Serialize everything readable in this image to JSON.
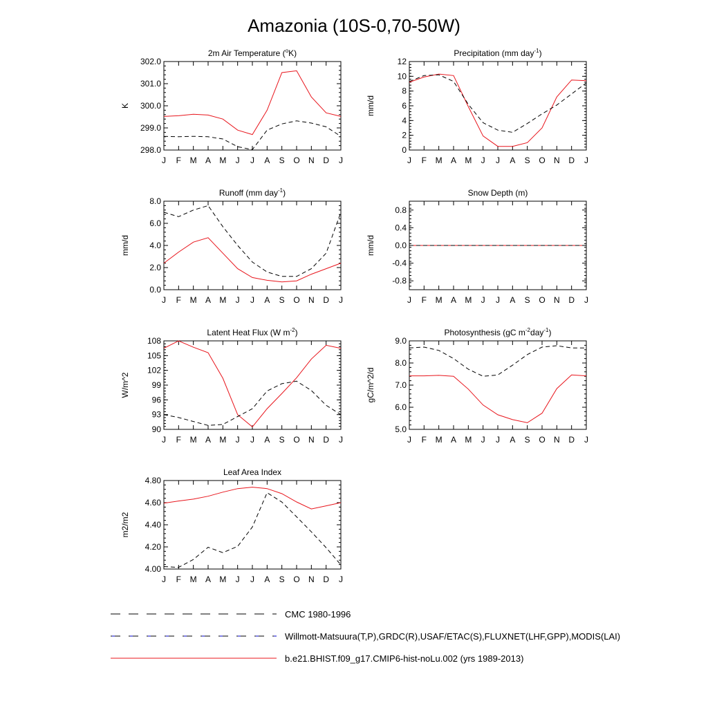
{
  "title": "Amazonia (10S-0,70-50W)",
  "colors": {
    "model": "#e8141b",
    "obs": "#000000",
    "obs_alt": "#0000cc"
  },
  "months": [
    "J",
    "F",
    "M",
    "A",
    "M",
    "J",
    "J",
    "A",
    "S",
    "O",
    "N",
    "D",
    "J"
  ],
  "legend": [
    {
      "label": "CMC 1980-1996",
      "style": "dash",
      "color": "#000000"
    },
    {
      "label": "Willmott-Matsuura(T,P),GRDC(R),USAF/ETAC(S),FLUXNET(LHF,GPP),MODIS(LAI)",
      "style": "dash",
      "color": "#000000"
    },
    {
      "label": "b.e21.BHIST.f09_g17.CMIP6-hist-noLu.002 (yrs 1989-2013)",
      "style": "solid",
      "color": "#e8141b"
    }
  ],
  "chart_data": [
    {
      "type": "line",
      "title": "2m Air Temperature (",
      "title_sup": "o",
      "title_tail": "K)",
      "ylabel": "K",
      "ylim": [
        298.0,
        302.0
      ],
      "yticks": [
        298.0,
        299.0,
        300.0,
        301.0,
        302.0
      ],
      "ytick_labels": [
        "298.0",
        "299.0",
        "300.0",
        "301.0",
        "302.0"
      ],
      "series": [
        {
          "style": "solid",
          "values": [
            299.52,
            299.55,
            299.62,
            299.58,
            299.4,
            298.9,
            298.7,
            299.8,
            301.5,
            301.58,
            300.4,
            299.68,
            299.52
          ]
        },
        {
          "style": "dash",
          "values": [
            298.62,
            298.6,
            298.62,
            298.6,
            298.5,
            298.15,
            298.02,
            298.9,
            299.18,
            299.32,
            299.22,
            299.05,
            298.62
          ]
        }
      ]
    },
    {
      "type": "line",
      "title": "Precipitation (mm day",
      "title_sup": "-1",
      "title_tail": ")",
      "ylabel": "mm/d",
      "ylim": [
        0,
        12
      ],
      "yticks": [
        0,
        2,
        4,
        6,
        8,
        10,
        12
      ],
      "ytick_labels": [
        "0",
        "2",
        "4",
        "6",
        "8",
        "10",
        "12"
      ],
      "series": [
        {
          "style": "solid",
          "values": [
            9.2,
            9.9,
            10.3,
            10.1,
            5.9,
            1.9,
            0.5,
            0.5,
            1.0,
            3.0,
            7.2,
            9.5,
            9.4
          ]
        },
        {
          "style": "dash",
          "values": [
            9.3,
            10.1,
            10.2,
            9.3,
            6.2,
            3.7,
            2.7,
            2.4,
            3.6,
            4.9,
            6.1,
            7.6,
            9.1
          ]
        }
      ]
    },
    {
      "type": "line",
      "title": "Runoff (mm day",
      "title_sup": "-1",
      "title_tail": ")",
      "ylabel": "mm/d",
      "ylim": [
        0.0,
        8.0
      ],
      "yticks": [
        0.0,
        2.0,
        4.0,
        6.0,
        8.0
      ],
      "ytick_labels": [
        "0.0",
        "2.0",
        "4.0",
        "6.0",
        "8.0"
      ],
      "series": [
        {
          "style": "solid",
          "values": [
            2.4,
            3.4,
            4.3,
            4.7,
            3.3,
            1.9,
            1.1,
            0.85,
            0.7,
            0.8,
            1.4,
            1.9,
            2.4
          ]
        },
        {
          "style": "dash",
          "values": [
            7.0,
            6.6,
            7.2,
            7.6,
            5.7,
            4.0,
            2.5,
            1.6,
            1.2,
            1.2,
            1.9,
            3.3,
            7.0
          ]
        }
      ]
    },
    {
      "type": "line",
      "title": "Snow Depth (m)",
      "title_sup": "",
      "title_tail": "",
      "ylabel": "mm/d",
      "ylim": [
        -1.0,
        1.0
      ],
      "yticks": [
        -0.8,
        -0.4,
        0.0,
        0.4,
        0.8
      ],
      "ytick_labels": [
        "-0.8",
        "-0.4",
        "0.0",
        "0.4",
        "0.8"
      ],
      "series": [
        {
          "style": "solid",
          "values": [
            0,
            0,
            0,
            0,
            0,
            0,
            0,
            0,
            0,
            0,
            0,
            0,
            0
          ]
        },
        {
          "style": "dash",
          "values": [
            0,
            0,
            0,
            0,
            0,
            0,
            0,
            0,
            0,
            0,
            0,
            0,
            0
          ]
        }
      ]
    },
    {
      "type": "line",
      "title": "Latent Heat Flux (W m",
      "title_sup": "-2",
      "title_tail": ")",
      "ylabel": "W/m^2",
      "ylim": [
        90,
        108
      ],
      "yticks": [
        90,
        93,
        96,
        99,
        102,
        105,
        108
      ],
      "ytick_labels": [
        "90",
        "93",
        "96",
        "99",
        "102",
        "105",
        "108"
      ],
      "series": [
        {
          "style": "solid",
          "values": [
            106.5,
            108.0,
            106.7,
            105.6,
            100.4,
            93.0,
            90.5,
            94.2,
            97.3,
            100.5,
            104.3,
            107.1,
            106.5
          ]
        },
        {
          "style": "dash",
          "values": [
            93.0,
            92.4,
            91.6,
            90.8,
            91.0,
            92.6,
            94.2,
            97.8,
            99.3,
            99.8,
            97.9,
            94.9,
            93.0
          ]
        }
      ]
    },
    {
      "type": "line",
      "title": "Photosynthesis (gC m",
      "title_sup": "-2",
      "title_tail": "day",
      "title_sup2": "-1",
      "title_tail2": ")",
      "ylabel": "gC/m^2/d",
      "ylim": [
        5.0,
        9.0
      ],
      "yticks": [
        5.0,
        6.0,
        7.0,
        8.0,
        9.0
      ],
      "ytick_labels": [
        "5.0",
        "6.0",
        "7.0",
        "8.0",
        "9.0"
      ],
      "series": [
        {
          "style": "solid",
          "values": [
            7.42,
            7.42,
            7.44,
            7.4,
            6.82,
            6.1,
            5.66,
            5.44,
            5.3,
            5.73,
            6.84,
            7.46,
            7.42
          ]
        },
        {
          "style": "dash",
          "values": [
            8.68,
            8.72,
            8.57,
            8.2,
            7.72,
            7.4,
            7.46,
            7.9,
            8.38,
            8.72,
            8.78,
            8.68,
            8.68
          ]
        }
      ]
    },
    {
      "type": "line",
      "title": "Leaf Area Index",
      "title_sup": "",
      "title_tail": "",
      "ylabel": "m2/m2",
      "ylim": [
        4.0,
        4.8
      ],
      "yticks": [
        4.0,
        4.2,
        4.4,
        4.6,
        4.8
      ],
      "ytick_labels": [
        "4.00",
        "4.20",
        "4.40",
        "4.60",
        "4.80"
      ],
      "series": [
        {
          "style": "solid",
          "values": [
            4.595,
            4.615,
            4.632,
            4.658,
            4.695,
            4.727,
            4.74,
            4.727,
            4.681,
            4.606,
            4.543,
            4.571,
            4.6
          ]
        },
        {
          "style": "dash",
          "values": [
            4.022,
            4.015,
            4.086,
            4.197,
            4.148,
            4.205,
            4.38,
            4.69,
            4.605,
            4.472,
            4.336,
            4.193,
            4.038
          ]
        }
      ]
    }
  ]
}
